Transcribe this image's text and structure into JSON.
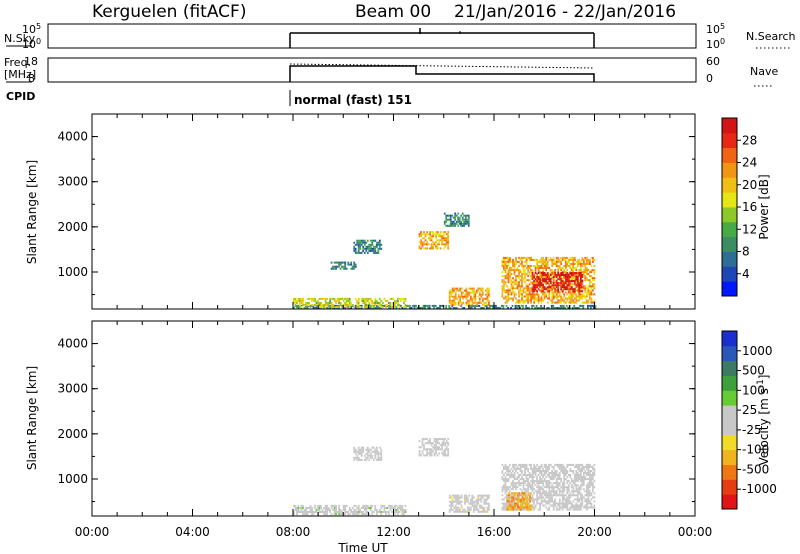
{
  "header": {
    "station": "Kerguelen (fitACF)",
    "beam": "Beam 00",
    "date_range": "21/Jan/2016 - 22/Jan/2016"
  },
  "panels": {
    "nsky": {
      "left_label": "N.Sky",
      "right_label": "N.Search",
      "left_ticks": [
        "10^5",
        "10^0"
      ],
      "right_ticks": [
        "10^5",
        "10^0"
      ]
    },
    "freq": {
      "left_label_1": "Freq.",
      "left_label_2": "[MHz]",
      "right_label": "Nave",
      "left_ticks": [
        "18",
        "8"
      ],
      "right_ticks": [
        "60",
        "0"
      ]
    },
    "cpid": {
      "label": "CPID",
      "mode_text": "normal (fast) 151"
    }
  },
  "colorbars": {
    "power": {
      "label": "Power [dB]",
      "tick_labels": [
        "28",
        "24",
        "20",
        "16",
        "12",
        "8",
        "4"
      ],
      "colors": [
        "#0018ff",
        "#1e46b4",
        "#2e6e96",
        "#3c8c64",
        "#46aa46",
        "#8cc828",
        "#e6e614",
        "#f0be14",
        "#f09614",
        "#f06414",
        "#e62814",
        "#d21414"
      ]
    },
    "velocity": {
      "label": "Velocity [m s^-1]",
      "tick_labels": [
        "1000",
        "500",
        "100",
        "25",
        "-25",
        "-100",
        "-500",
        "-1000"
      ],
      "colors": [
        "#1a2fd0",
        "#2a58b8",
        "#3c7a64",
        "#3ca03c",
        "#66cc33",
        "#c8c8c8",
        "#c8c8c8",
        "#f0dc28",
        "#f0b41e",
        "#f07814",
        "#e63c14",
        "#e01414"
      ]
    }
  },
  "chart_data": [
    {
      "type": "heatmap",
      "title": "Power",
      "ylabel": "Slant Range [km]",
      "xlabel": "",
      "ylim": [
        180,
        4500
      ],
      "xlim": [
        0,
        24
      ],
      "yticks": [
        1000,
        2000,
        3000,
        4000
      ],
      "xticks": [
        0,
        4,
        8,
        12,
        16,
        20,
        24
      ],
      "colorbar": "power",
      "regions": [
        {
          "x": [
            8.0,
            20.0
          ],
          "y": [
            180,
            260
          ],
          "value": 8
        },
        {
          "x": [
            8.0,
            12.5
          ],
          "y": [
            200,
            420
          ],
          "value": 16
        },
        {
          "x": [
            9.5,
            10.5
          ],
          "y": [
            1050,
            1200
          ],
          "value": 8
        },
        {
          "x": [
            10.4,
            11.5
          ],
          "y": [
            1400,
            1700
          ],
          "value": 8
        },
        {
          "x": [
            13.0,
            14.2
          ],
          "y": [
            1500,
            1900
          ],
          "value": 20
        },
        {
          "x": [
            14.0,
            15.0
          ],
          "y": [
            2000,
            2300
          ],
          "value": 8
        },
        {
          "x": [
            14.2,
            15.8
          ],
          "y": [
            250,
            650
          ],
          "value": 20
        },
        {
          "x": [
            16.3,
            20.0
          ],
          "y": [
            300,
            1300
          ],
          "value": 20
        },
        {
          "x": [
            17.5,
            19.5
          ],
          "y": [
            550,
            1000
          ],
          "value": 28
        }
      ]
    },
    {
      "type": "heatmap",
      "title": "Velocity",
      "ylabel": "Slant Range [km]",
      "xlabel": "Time UT",
      "ylim": [
        180,
        4500
      ],
      "xlim": [
        0,
        24
      ],
      "yticks": [
        1000,
        2000,
        3000,
        4000
      ],
      "xticks": [
        0,
        4,
        8,
        12,
        16,
        20,
        24
      ],
      "xtick_labels": [
        "00:00",
        "04:00",
        "08:00",
        "12:00",
        "16:00",
        "20:00",
        "00:00"
      ],
      "colorbar": "velocity",
      "regions": [
        {
          "x": [
            8.0,
            12.5
          ],
          "y": [
            200,
            420
          ],
          "value": 100
        },
        {
          "x": [
            10.4,
            11.5
          ],
          "y": [
            1400,
            1700
          ],
          "value": 0
        },
        {
          "x": [
            13.0,
            14.2
          ],
          "y": [
            1500,
            1900
          ],
          "value": 0
        },
        {
          "x": [
            14.2,
            15.8
          ],
          "y": [
            250,
            650
          ],
          "value": -100
        },
        {
          "x": [
            16.3,
            20.0
          ],
          "y": [
            300,
            1300
          ],
          "value": 0
        },
        {
          "x": [
            16.5,
            17.5
          ],
          "y": [
            300,
            700
          ],
          "value": -500
        }
      ]
    }
  ]
}
